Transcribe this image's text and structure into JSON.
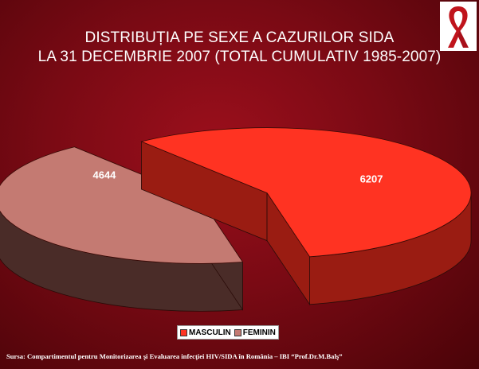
{
  "title": {
    "line1": "DISTRIBUȚIA PE SEXE A CAZURILOR SIDA",
    "line2": "LA 31 DECEMBRIE 2007 (TOTAL CUMULATIV 1985-2007)"
  },
  "logo": {
    "icon": "red-ribbon-icon"
  },
  "chart_data": {
    "type": "pie",
    "style": "3d-exploded",
    "slices": [
      {
        "name": "MASCULIN",
        "value": 6207,
        "color": "#ff3322",
        "side_color": "#9a1c12"
      },
      {
        "name": "FEMININ",
        "value": 4644,
        "color": "#c47a72",
        "side_color": "#4a2c28"
      }
    ],
    "labels": [
      "6207",
      "4644"
    ],
    "legend_position": "bottom"
  },
  "legend": {
    "items": [
      {
        "label": "MASCULIN",
        "color": "#ff3322"
      },
      {
        "label": "FEMININ",
        "color": "#c47a72"
      }
    ]
  },
  "source": "Sursa: Compartimentul pentru Monitorizarea şi Evaluarea infecţiei HIV/SIDA în România – IBI “Prof.Dr.M.Balş”"
}
